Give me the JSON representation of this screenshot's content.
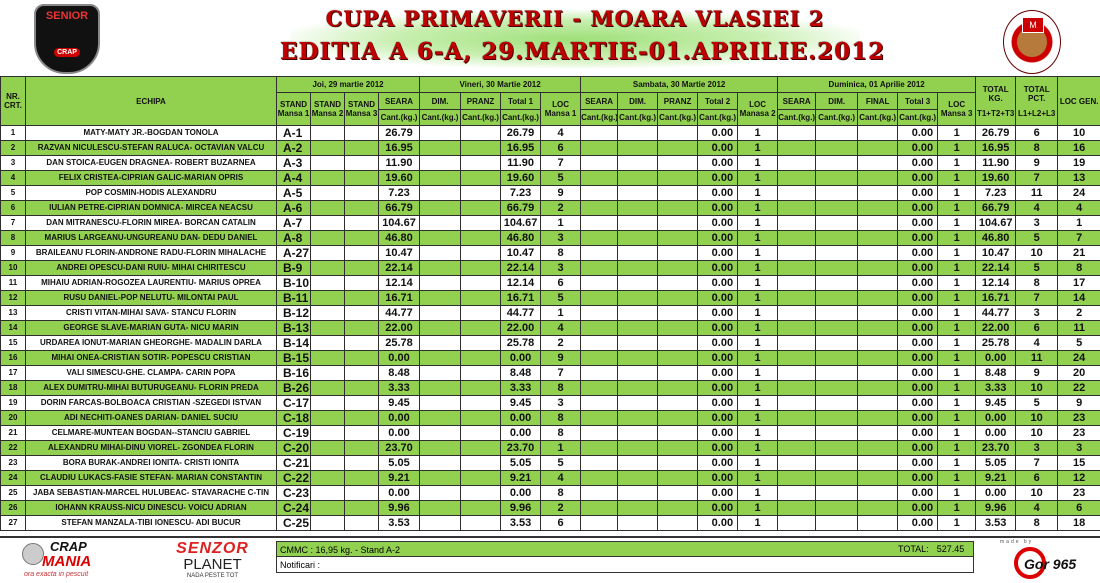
{
  "header": {
    "title_line1": "CUPA PRIMAVERII - MOARA VLASIEI 2",
    "title_line2": "EDITIA  A 6-A, 29.MARTIE-01.APRILIE.2012",
    "logo_left_text": "SENIOR",
    "logo_left_sub": "CRAP",
    "logo_right_text": "M"
  },
  "columns": {
    "nr": "NR. CRT.",
    "echipa": "ECHIPA",
    "day1": "Joi, 29 martie 2012",
    "day2": "Vineri, 30 Martie 2012",
    "day3": "Sambata, 30 Martie 2012",
    "day4": "Duminica, 01 Aprilie 2012",
    "stand1": "STAND Mansa 1",
    "stand2": "STAND Mansa 2",
    "stand3": "STAND Mansa 3",
    "seara": "SEARA",
    "dim": "DIM.",
    "pranz": "PRANZ",
    "final": "FINAL",
    "total1": "Total 1",
    "total2": "Total 2",
    "total3": "Total 3",
    "loc1": "LOC Mansa 1",
    "loc2": "LOC Manasa 2",
    "loc3": "LOC Mansa 3",
    "unit": "Cant.(kg.)",
    "total_kg": "TOTAL KG.",
    "total_kg_sub": "T1+T2+T3",
    "total_pct": "TOTAL PCT.",
    "total_pct_sub": "L1+L2+L3",
    "loc_gen": "LOC GEN."
  },
  "rows": [
    {
      "nr": "1",
      "echipa": "MATY-MATY JR.-BOGDAN TONOLA",
      "stand": "A-1",
      "seara": "26.79",
      "total1": "26.79",
      "loc1": "4",
      "total2": "0.00",
      "loc2": "1",
      "total3": "0.00",
      "loc3": "1",
      "total_kg": "26.79",
      "total_pct": "6",
      "loc_gen": "10"
    },
    {
      "nr": "2",
      "echipa": "RAZVAN NICULESCU-STEFAN RALUCA- OCTAVIAN VALCU",
      "stand": "A-2",
      "seara": "16.95",
      "total1": "16.95",
      "loc1": "6",
      "total2": "0.00",
      "loc2": "1",
      "total3": "0.00",
      "loc3": "1",
      "total_kg": "16.95",
      "total_pct": "8",
      "loc_gen": "16"
    },
    {
      "nr": "3",
      "echipa": "DAN STOICA-EUGEN DRAGNEA- ROBERT BUZARNEA",
      "stand": "A-3",
      "seara": "11.90",
      "total1": "11.90",
      "loc1": "7",
      "total2": "0.00",
      "loc2": "1",
      "total3": "0.00",
      "loc3": "1",
      "total_kg": "11.90",
      "total_pct": "9",
      "loc_gen": "19"
    },
    {
      "nr": "4",
      "echipa": "FELIX CRISTEA-CIPRIAN GALIC-MARIAN OPRIS",
      "stand": "A-4",
      "seara": "19.60",
      "total1": "19.60",
      "loc1": "5",
      "total2": "0.00",
      "loc2": "1",
      "total3": "0.00",
      "loc3": "1",
      "total_kg": "19.60",
      "total_pct": "7",
      "loc_gen": "13"
    },
    {
      "nr": "5",
      "echipa": "POP COSMIN-HODIS ALEXANDRU",
      "stand": "A-5",
      "seara": "7.23",
      "total1": "7.23",
      "loc1": "9",
      "total2": "0.00",
      "loc2": "1",
      "total3": "0.00",
      "loc3": "1",
      "total_kg": "7.23",
      "total_pct": "11",
      "loc_gen": "24"
    },
    {
      "nr": "6",
      "echipa": "IULIAN PETRE-CIPRIAN DOMNICA- MIRCEA NEACSU",
      "stand": "A-6",
      "seara": "66.79",
      "total1": "66.79",
      "loc1": "2",
      "total2": "0.00",
      "loc2": "1",
      "total3": "0.00",
      "loc3": "1",
      "total_kg": "66.79",
      "total_pct": "4",
      "loc_gen": "4"
    },
    {
      "nr": "7",
      "echipa": "DAN MITRANESCU-FLORIN MIREA- BORCAN CATALIN",
      "stand": "A-7",
      "seara": "104.67",
      "total1": "104.67",
      "loc1": "1",
      "total2": "0.00",
      "loc2": "1",
      "total3": "0.00",
      "loc3": "1",
      "total_kg": "104.67",
      "total_pct": "3",
      "loc_gen": "1"
    },
    {
      "nr": "8",
      "echipa": "MARIUS LARGEANU-UNGUREANU DAN- DEDU DANIEL",
      "stand": "A-8",
      "seara": "46.80",
      "total1": "46.80",
      "loc1": "3",
      "total2": "0.00",
      "loc2": "1",
      "total3": "0.00",
      "loc3": "1",
      "total_kg": "46.80",
      "total_pct": "5",
      "loc_gen": "7"
    },
    {
      "nr": "9",
      "echipa": "BRAILEANU FLORIN-ANDRONE RADU-FLORIN MIHALACHE",
      "stand": "A-27",
      "seara": "10.47",
      "total1": "10.47",
      "loc1": "8",
      "total2": "0.00",
      "loc2": "1",
      "total3": "0.00",
      "loc3": "1",
      "total_kg": "10.47",
      "total_pct": "10",
      "loc_gen": "21"
    },
    {
      "nr": "10",
      "echipa": "ANDREI OPESCU-DANI RUIU- MIHAI CHIRITESCU",
      "stand": "B-9",
      "seara": "22.14",
      "total1": "22.14",
      "loc1": "3",
      "total2": "0.00",
      "loc2": "1",
      "total3": "0.00",
      "loc3": "1",
      "total_kg": "22.14",
      "total_pct": "5",
      "loc_gen": "8"
    },
    {
      "nr": "11",
      "echipa": "MIHAIU ADRIAN-ROGOZEA LAURENTIU- MARIUS OPREA",
      "stand": "B-10",
      "seara": "12.14",
      "total1": "12.14",
      "loc1": "6",
      "total2": "0.00",
      "loc2": "1",
      "total3": "0.00",
      "loc3": "1",
      "total_kg": "12.14",
      "total_pct": "8",
      "loc_gen": "17"
    },
    {
      "nr": "12",
      "echipa": "RUSU DANIEL-POP NELUTU- MILONTAI PAUL",
      "stand": "B-11",
      "seara": "16.71",
      "total1": "16.71",
      "loc1": "5",
      "total2": "0.00",
      "loc2": "1",
      "total3": "0.00",
      "loc3": "1",
      "total_kg": "16.71",
      "total_pct": "7",
      "loc_gen": "14"
    },
    {
      "nr": "13",
      "echipa": "CRISTI VITAN-MIHAI SAVA- STANCU FLORIN",
      "stand": "B-12",
      "seara": "44.77",
      "total1": "44.77",
      "loc1": "1",
      "total2": "0.00",
      "loc2": "1",
      "total3": "0.00",
      "loc3": "1",
      "total_kg": "44.77",
      "total_pct": "3",
      "loc_gen": "2"
    },
    {
      "nr": "14",
      "echipa": "GEORGE SLAVE-MARIAN GUTA- NICU MARIN",
      "stand": "B-13",
      "seara": "22.00",
      "total1": "22.00",
      "loc1": "4",
      "total2": "0.00",
      "loc2": "1",
      "total3": "0.00",
      "loc3": "1",
      "total_kg": "22.00",
      "total_pct": "6",
      "loc_gen": "11"
    },
    {
      "nr": "15",
      "echipa": "URDAREA IONUT-MARIAN GHEORGHE- MADALIN DARLA",
      "stand": "B-14",
      "seara": "25.78",
      "total1": "25.78",
      "loc1": "2",
      "total2": "0.00",
      "loc2": "1",
      "total3": "0.00",
      "loc3": "1",
      "total_kg": "25.78",
      "total_pct": "4",
      "loc_gen": "5"
    },
    {
      "nr": "16",
      "echipa": "MIHAI ONEA-CRISTIAN SOTIR- POPESCU CRISTIAN",
      "stand": "B-15",
      "seara": "0.00",
      "total1": "0.00",
      "loc1": "9",
      "total2": "0.00",
      "loc2": "1",
      "total3": "0.00",
      "loc3": "1",
      "total_kg": "0.00",
      "total_pct": "11",
      "loc_gen": "24"
    },
    {
      "nr": "17",
      "echipa": "VALI SIMESCU-GHE. CLAMPA- CARIN POPA",
      "stand": "B-16",
      "seara": "8.48",
      "total1": "8.48",
      "loc1": "7",
      "total2": "0.00",
      "loc2": "1",
      "total3": "0.00",
      "loc3": "1",
      "total_kg": "8.48",
      "total_pct": "9",
      "loc_gen": "20"
    },
    {
      "nr": "18",
      "echipa": "ALEX DUMITRU-MIHAI BUTURUGEANU- FLORIN PREDA",
      "stand": "B-26",
      "seara": "3.33",
      "total1": "3.33",
      "loc1": "8",
      "total2": "0.00",
      "loc2": "1",
      "total3": "0.00",
      "loc3": "1",
      "total_kg": "3.33",
      "total_pct": "10",
      "loc_gen": "22"
    },
    {
      "nr": "19",
      "echipa": "DORIN FARCAS-BOLBOACA CRISTIAN -SZEGEDI ISTVAN",
      "stand": "C-17",
      "seara": "9.45",
      "total1": "9.45",
      "loc1": "3",
      "total2": "0.00",
      "loc2": "1",
      "total3": "0.00",
      "loc3": "1",
      "total_kg": "9.45",
      "total_pct": "5",
      "loc_gen": "9"
    },
    {
      "nr": "20",
      "echipa": "ADI NECHITI-OANES DARIAN- DANIEL SUCIU",
      "stand": "C-18",
      "seara": "0.00",
      "total1": "0.00",
      "loc1": "8",
      "total2": "0.00",
      "loc2": "1",
      "total3": "0.00",
      "loc3": "1",
      "total_kg": "0.00",
      "total_pct": "10",
      "loc_gen": "23"
    },
    {
      "nr": "21",
      "echipa": "CELMARE-MUNTEAN BOGDAN--STANCIU GABRIEL",
      "stand": "C-19",
      "seara": "0.00",
      "total1": "0.00",
      "loc1": "8",
      "total2": "0.00",
      "loc2": "1",
      "total3": "0.00",
      "loc3": "1",
      "total_kg": "0.00",
      "total_pct": "10",
      "loc_gen": "23"
    },
    {
      "nr": "22",
      "echipa": "ALEXANDRU MIHAI-DINU VIOREL- ZGONDEA FLORIN",
      "stand": "C-20",
      "seara": "23.70",
      "total1": "23.70",
      "loc1": "1",
      "total2": "0.00",
      "loc2": "1",
      "total3": "0.00",
      "loc3": "1",
      "total_kg": "23.70",
      "total_pct": "3",
      "loc_gen": "3"
    },
    {
      "nr": "23",
      "echipa": "BORA BURAK-ANDREI IONITA- CRISTI IONITA",
      "stand": "C-21",
      "seara": "5.05",
      "total1": "5.05",
      "loc1": "5",
      "total2": "0.00",
      "loc2": "1",
      "total3": "0.00",
      "loc3": "1",
      "total_kg": "5.05",
      "total_pct": "7",
      "loc_gen": "15"
    },
    {
      "nr": "24",
      "echipa": "CLAUDIU LUKACS-FASIE STEFAN- MARIAN CONSTANTIN",
      "stand": "C-22",
      "seara": "9.21",
      "total1": "9.21",
      "loc1": "4",
      "total2": "0.00",
      "loc2": "1",
      "total3": "0.00",
      "loc3": "1",
      "total_kg": "9.21",
      "total_pct": "6",
      "loc_gen": "12"
    },
    {
      "nr": "25",
      "echipa": "JABA SEBASTIAN-MARCEL HULUBEAC- STAVARACHE C-TIN",
      "stand": "C-23",
      "seara": "0.00",
      "total1": "0.00",
      "loc1": "8",
      "total2": "0.00",
      "loc2": "1",
      "total3": "0.00",
      "loc3": "1",
      "total_kg": "0.00",
      "total_pct": "10",
      "loc_gen": "23"
    },
    {
      "nr": "26",
      "echipa": "IOHANN KRAUSS-NICU DINESCU- VOICU ADRIAN",
      "stand": "C-24",
      "seara": "9.96",
      "total1": "9.96",
      "loc1": "2",
      "total2": "0.00",
      "loc2": "1",
      "total3": "0.00",
      "loc3": "1",
      "total_kg": "9.96",
      "total_pct": "4",
      "loc_gen": "6"
    },
    {
      "nr": "27",
      "echipa": "STEFAN MANZALA-TIBI IONESCU- ADI BUCUR",
      "stand": "C-25",
      "seara": "3.53",
      "total1": "3.53",
      "loc1": "6",
      "total2": "0.00",
      "loc2": "1",
      "total3": "0.00",
      "loc3": "1",
      "total_kg": "3.53",
      "total_pct": "8",
      "loc_gen": "18"
    }
  ],
  "footer": {
    "cmmc": "CMMC :  16,95 kg. - Stand A-2",
    "notificari": "Notificari :",
    "total_label": "TOTAL:",
    "total_value": "527.45",
    "crapmania_line1": "CRAP",
    "crapmania_line2": "MANIA",
    "crapmania_tagline": "ora exacta in pescuit",
    "senzor_line1": "SENZOR",
    "senzor_line2": "PLANET",
    "senzor_tagline": "NADA PESTE TOT",
    "made_by": "made by",
    "gor_logo": "Gor 965"
  },
  "colors": {
    "header_green": "#92d050",
    "title_red": "#c00000"
  }
}
